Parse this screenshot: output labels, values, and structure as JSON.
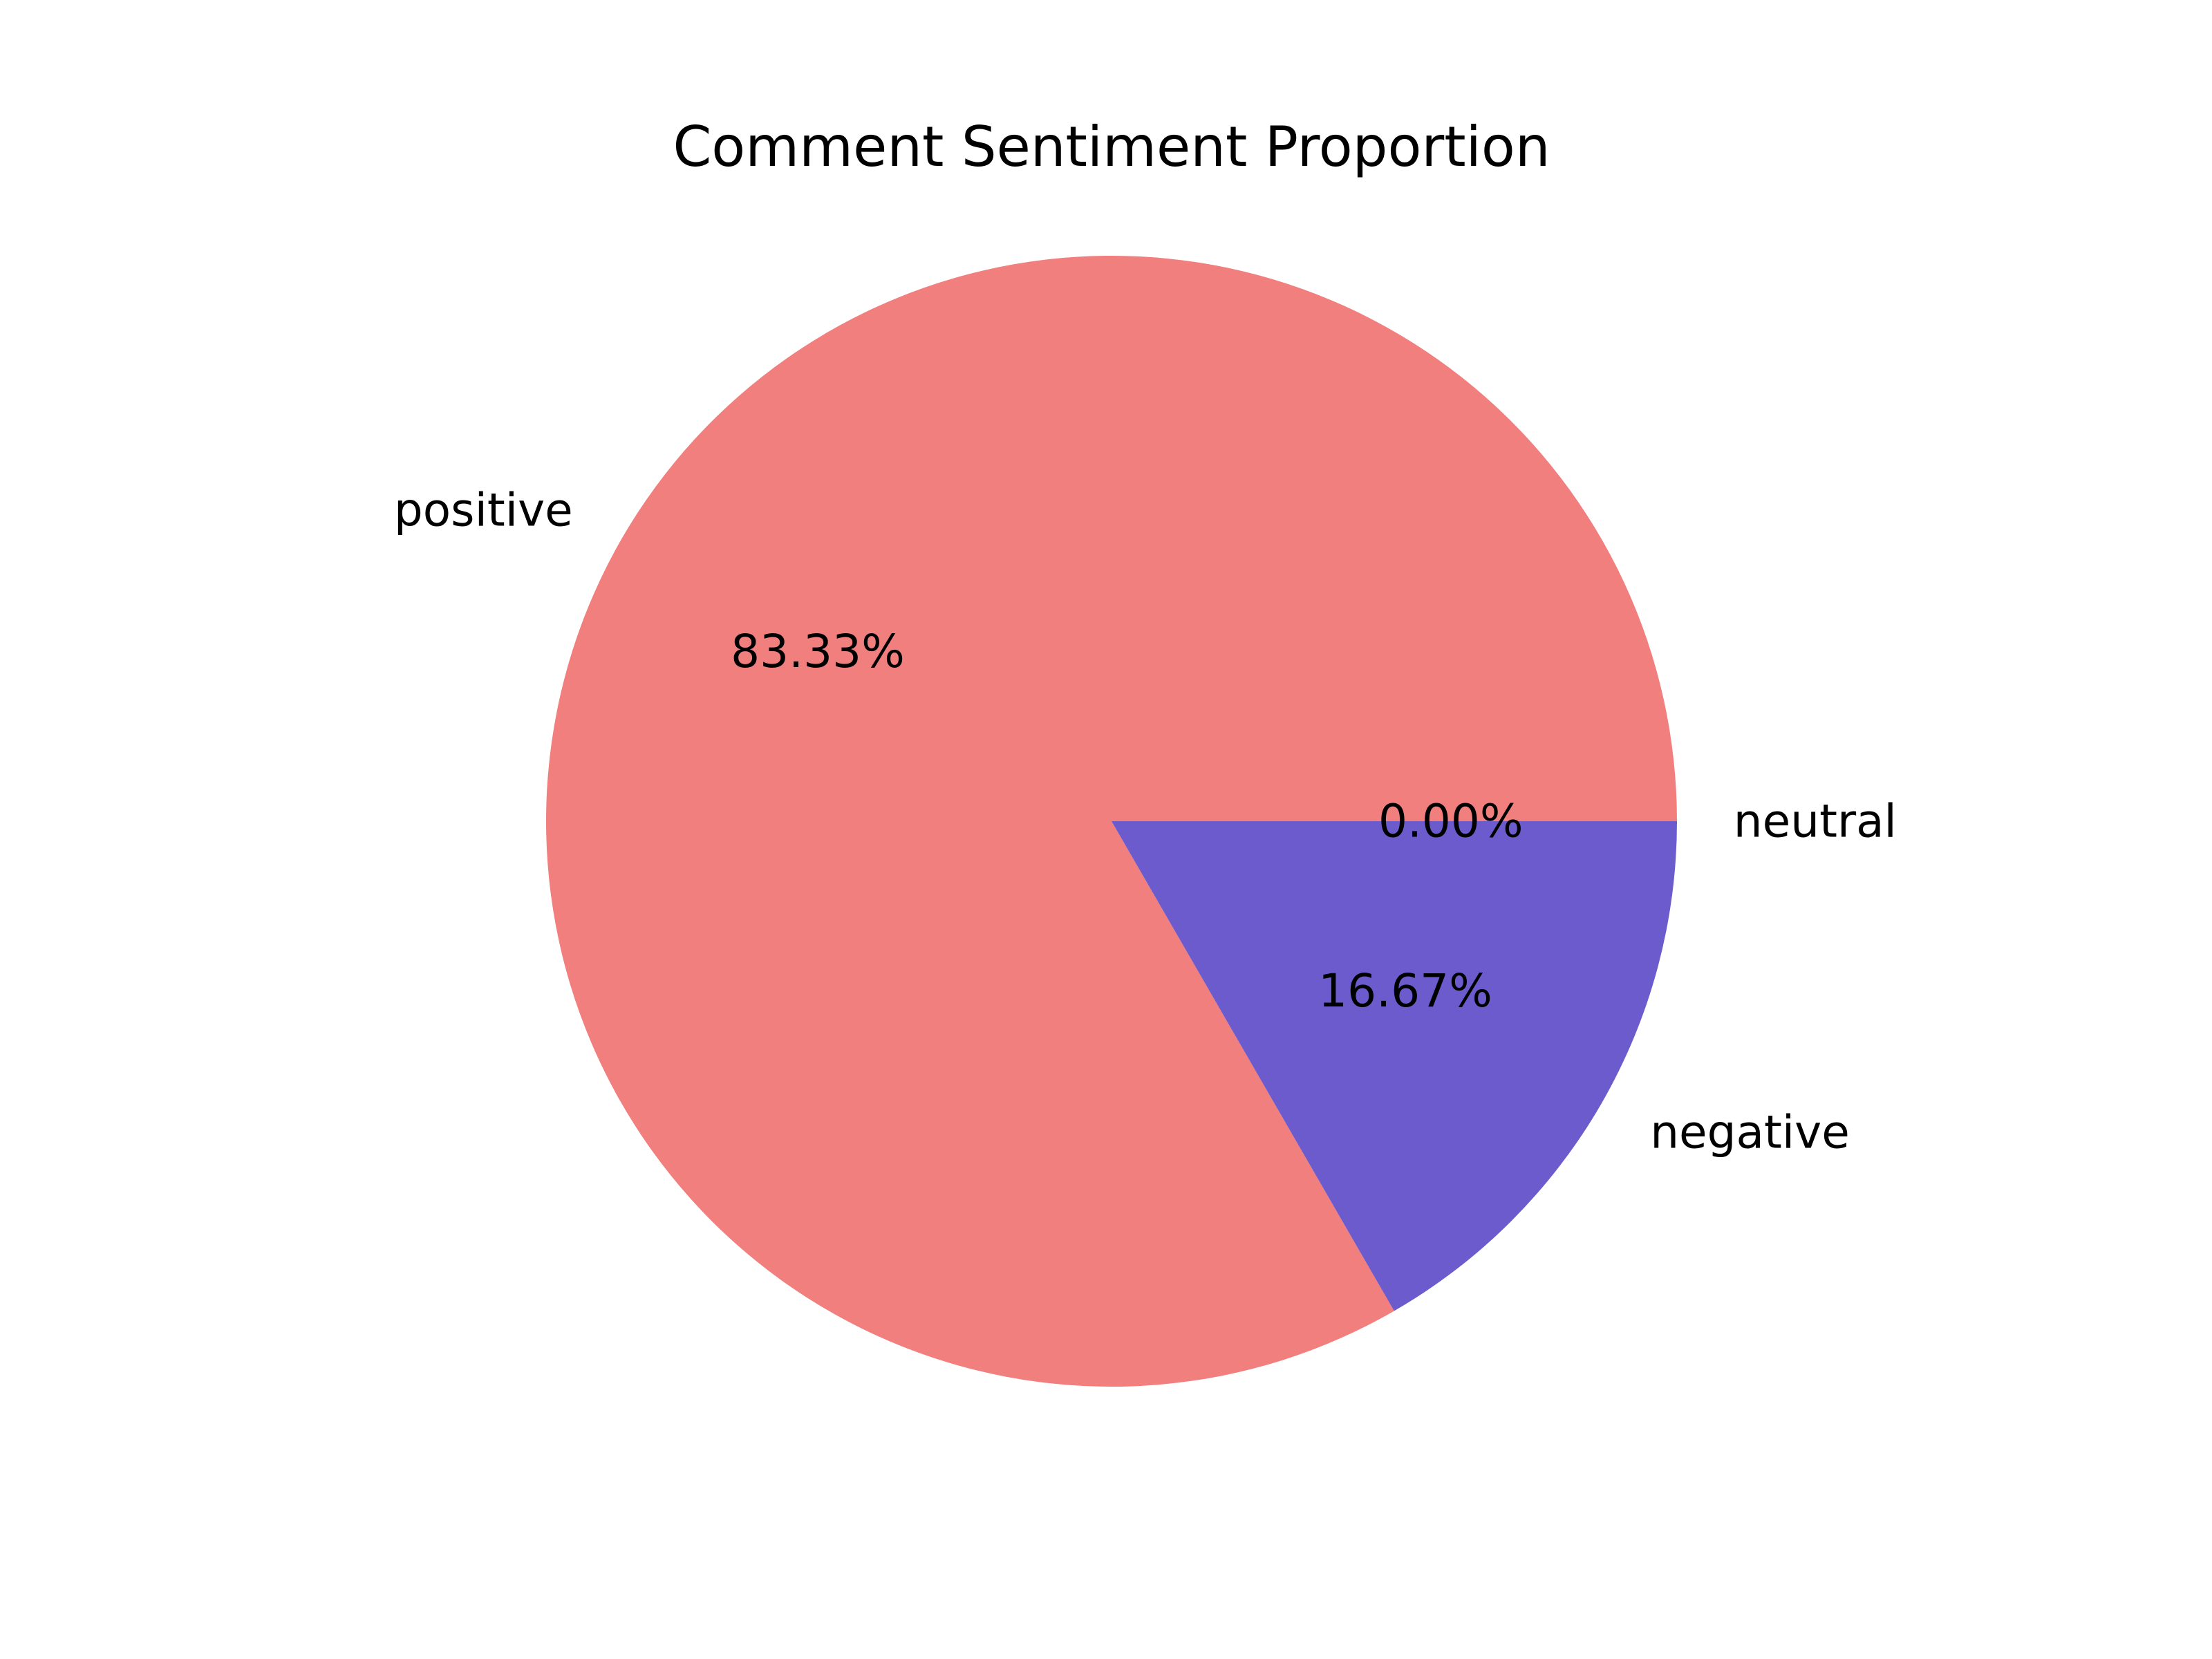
{
  "chart_data": {
    "type": "pie",
    "title": "Comment Sentiment Proportion",
    "start_angle_deg": 0,
    "direction": "counterclockwise",
    "slices": [
      {
        "label": "neutral",
        "value": 0.0,
        "pct_label": "0.00%",
        "color": "#6b5bcd"
      },
      {
        "label": "positive",
        "value": 83.33,
        "pct_label": "83.33%",
        "color": "#f07f7e"
      },
      {
        "label": "negative",
        "value": 16.67,
        "pct_label": "16.67%",
        "color": "#6b5bcd"
      }
    ]
  }
}
